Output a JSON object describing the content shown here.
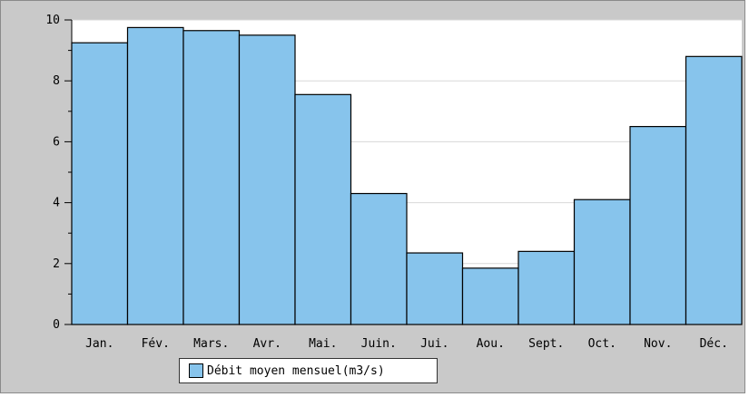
{
  "colors": {
    "bar_fill": "#87c4ec",
    "bar_stroke": "#000000",
    "panel_background": "#c9c9c9",
    "plot_background": "#ffffff",
    "grid": "#d8d8d8"
  },
  "chart_data": {
    "type": "bar",
    "categories": [
      "Jan.",
      "Fév.",
      "Mars.",
      "Avr.",
      "Mai.",
      "Juin.",
      "Jui.",
      "Aou.",
      "Sept.",
      "Oct.",
      "Nov.",
      "Déc."
    ],
    "series": [
      {
        "name": "Débit moyen mensuel(m3/s)",
        "values": [
          9.25,
          9.75,
          9.65,
          9.5,
          7.55,
          4.3,
          2.35,
          1.85,
          2.4,
          4.1,
          6.5,
          8.8
        ]
      }
    ],
    "yticks": [
      0,
      2,
      4,
      6,
      8,
      10
    ],
    "ylim": [
      0,
      10
    ],
    "grid": true,
    "legend_position": "bottom-left"
  }
}
